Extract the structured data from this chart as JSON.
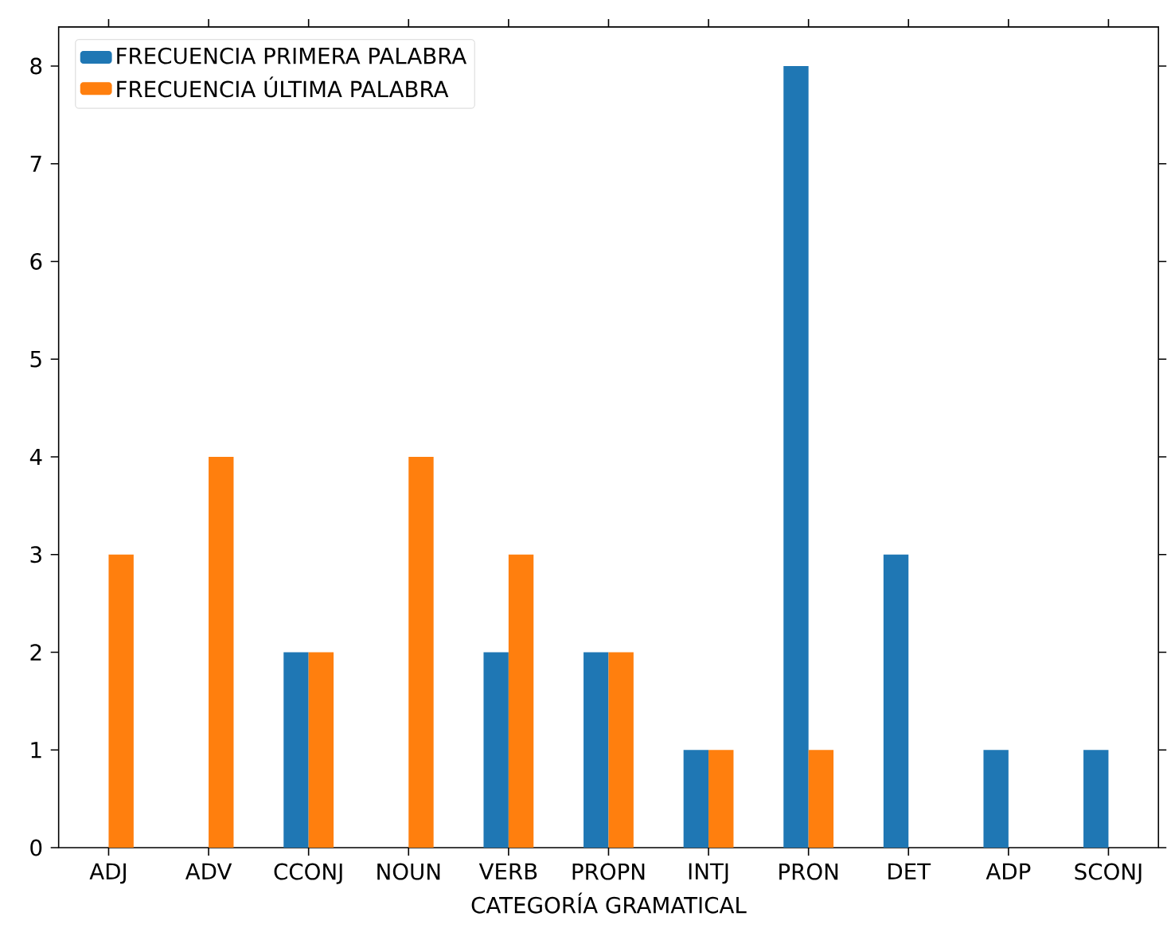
{
  "chart_data": {
    "type": "bar",
    "xlabel": "CATEGORÍA GRAMATICAL",
    "categories": [
      "ADJ",
      "ADV",
      "CCONJ",
      "NOUN",
      "VERB",
      "PROPN",
      "INTJ",
      "PRON",
      "DET",
      "ADP",
      "SCONJ"
    ],
    "series": [
      {
        "name": "FRECUENCIA PRIMERA PALABRA",
        "color": "#1f77b4",
        "values": [
          0,
          0,
          2,
          0,
          2,
          2,
          1,
          8,
          3,
          1,
          1
        ]
      },
      {
        "name": "FRECUENCIA ÚLTIMA PALABRA",
        "color": "#ff7f0e",
        "values": [
          3,
          4,
          2,
          4,
          3,
          2,
          1,
          1,
          0,
          0,
          0
        ]
      }
    ],
    "ylim": [
      0,
      8.4
    ],
    "yticks": [
      0,
      1,
      2,
      3,
      4,
      5,
      6,
      7,
      8
    ],
    "legend": "top left"
  }
}
